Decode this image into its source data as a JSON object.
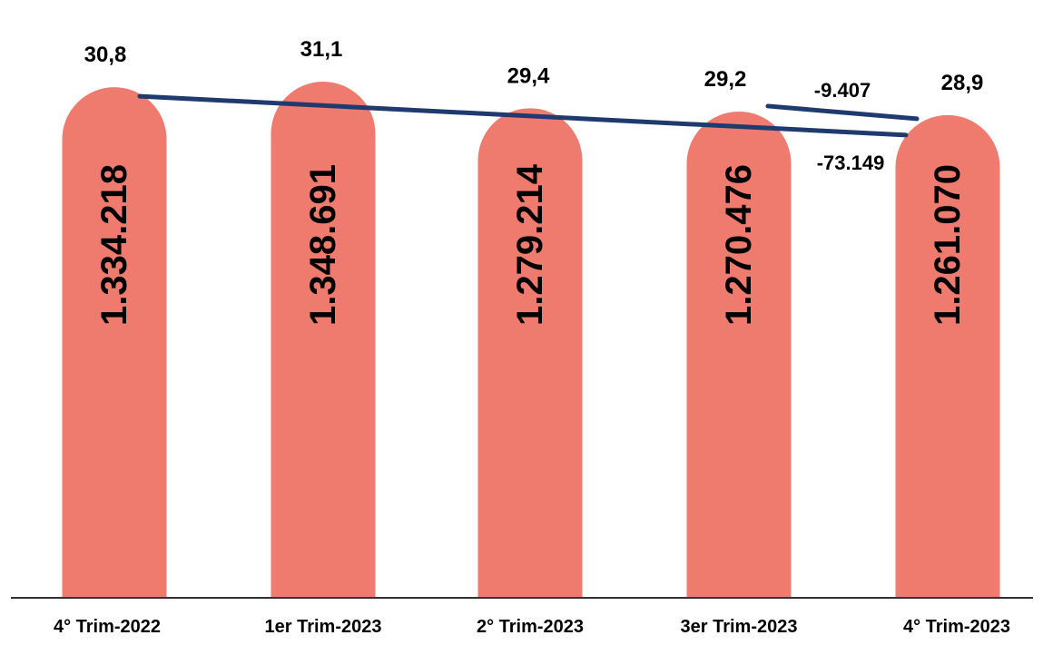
{
  "chart_data": {
    "type": "bar",
    "categories": [
      "4° Trim-2022",
      "1er Trim-2023",
      "2° Trim-2023",
      "3er Trim-2023",
      "4° Trim-2023"
    ],
    "values": [
      1334218,
      1348691,
      1279214,
      1270476,
      1261070
    ],
    "value_labels": [
      "1.334.218",
      "1.348.691",
      "1.279.214",
      "1.270.476",
      "1.261.070"
    ],
    "top_labels": [
      "30,8",
      "31,1",
      "29,4",
      "29,2",
      "28,9"
    ],
    "bar_style": "rounded-top",
    "annotations": [
      {
        "text": "-9.407",
        "from": "3er Trim-2023",
        "to": "4° Trim-2023"
      },
      {
        "text": "-73.149",
        "from": "4° Trim-2022",
        "to": "4° Trim-2023"
      }
    ],
    "grid": false,
    "legend": false,
    "colors": {
      "bar": "#EF7B6F",
      "trend_line": "#1F3A6E",
      "axis": "#333333",
      "text": "#000000"
    }
  }
}
